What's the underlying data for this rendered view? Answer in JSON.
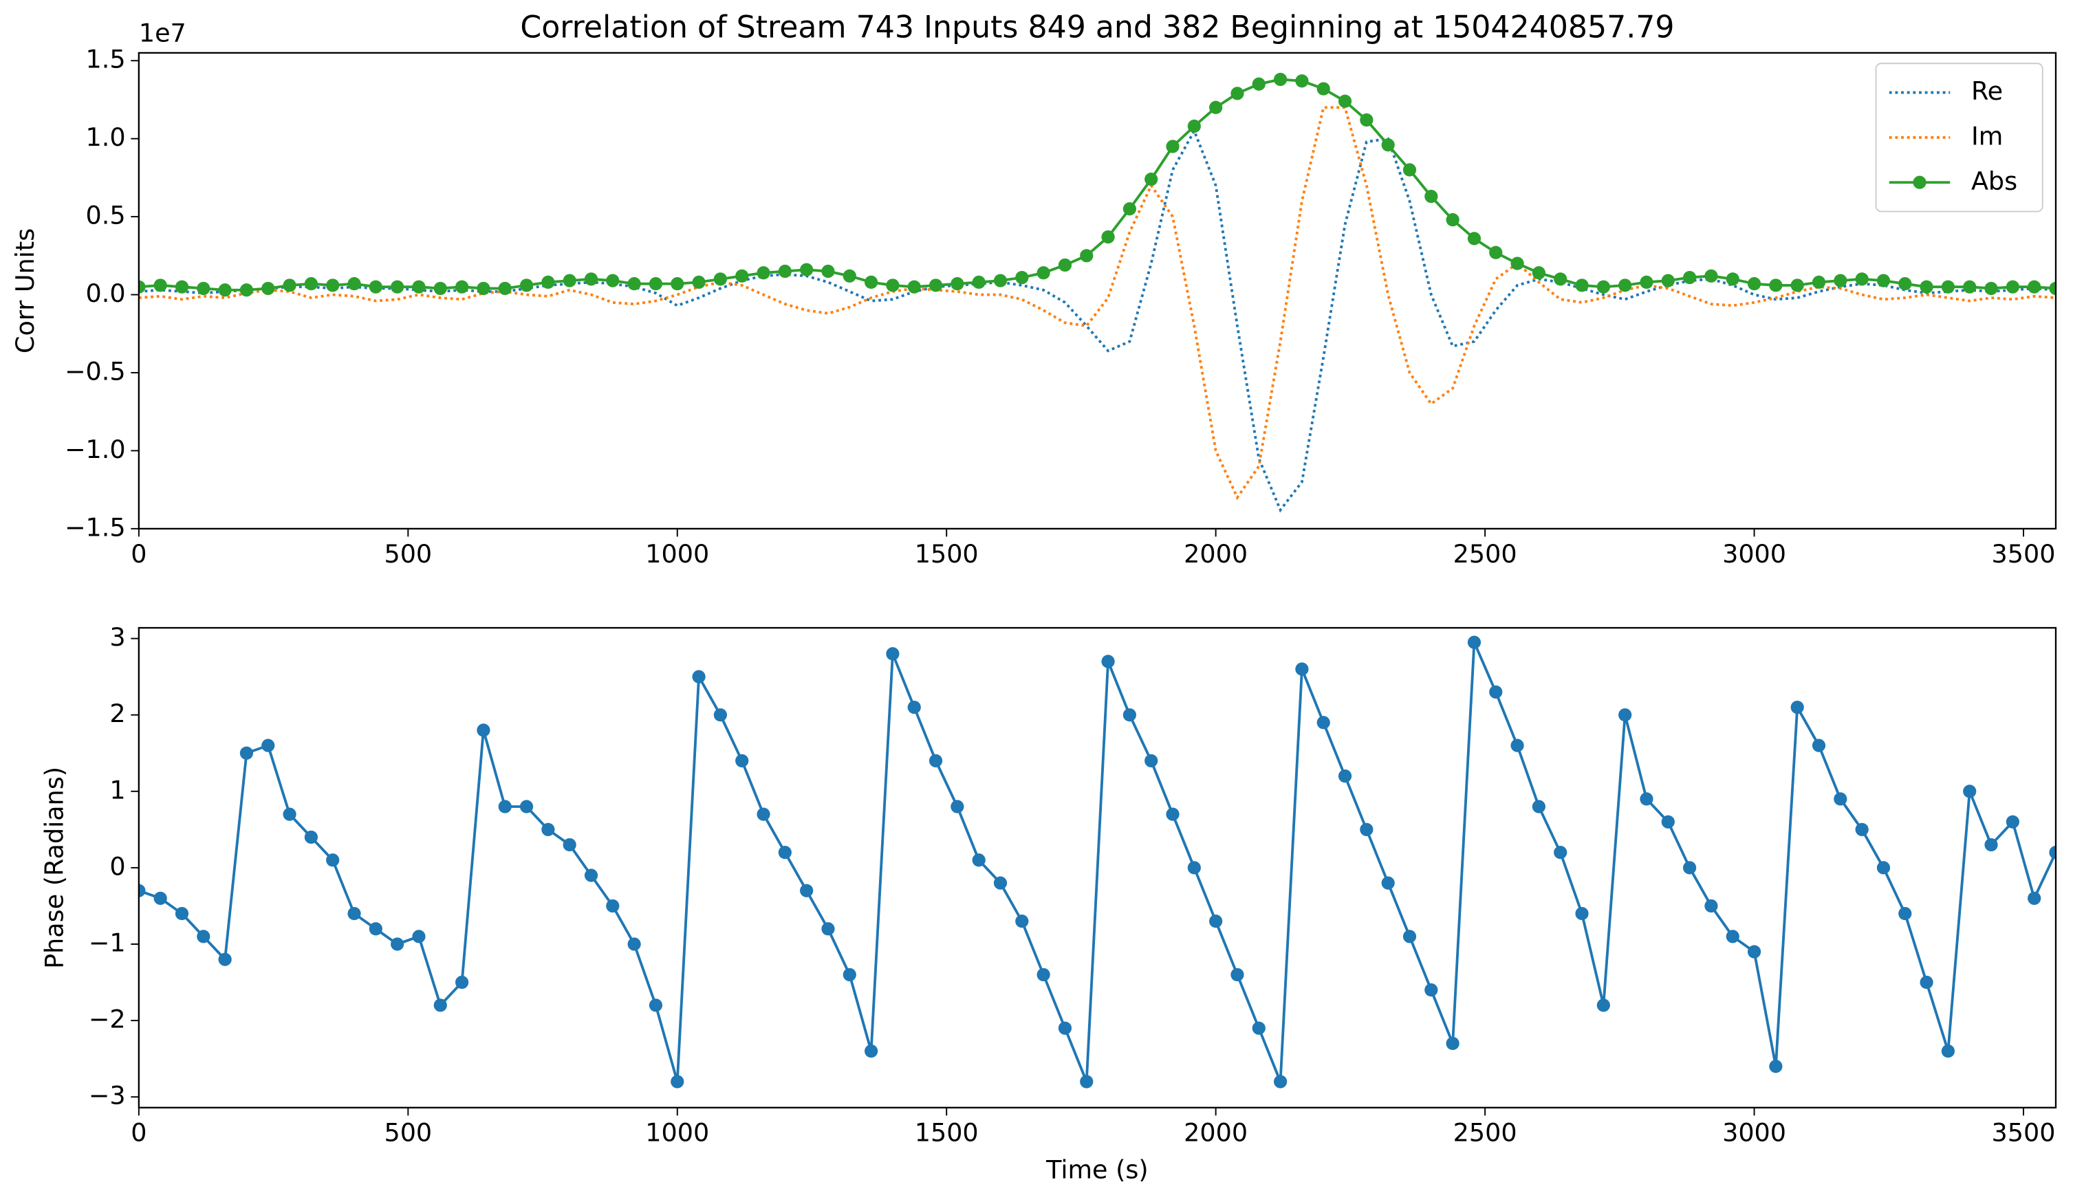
{
  "chart_data": [
    {
      "type": "line",
      "title": "Correlation of Stream 743 Inputs 849 and 382 Beginning at 1504240857.79",
      "ylabel": "Corr Units",
      "offset_text": "1e7",
      "legend": "upper right",
      "x": [
        0,
        40,
        80,
        120,
        160,
        200,
        240,
        280,
        320,
        360,
        400,
        440,
        480,
        520,
        560,
        600,
        640,
        680,
        720,
        760,
        800,
        840,
        880,
        920,
        960,
        1000,
        1040,
        1080,
        1120,
        1160,
        1200,
        1240,
        1280,
        1320,
        1360,
        1400,
        1440,
        1480,
        1520,
        1560,
        1600,
        1640,
        1680,
        1720,
        1760,
        1800,
        1840,
        1880,
        1920,
        1960,
        2000,
        2040,
        2080,
        2120,
        2160,
        2200,
        2240,
        2280,
        2320,
        2360,
        2400,
        2440,
        2480,
        2520,
        2560,
        2600,
        2640,
        2680,
        2720,
        2760,
        2800,
        2840,
        2880,
        2920,
        2960,
        3000,
        3040,
        3080,
        3120,
        3160,
        3200,
        3240,
        3280,
        3320,
        3360,
        3400,
        3440,
        3480,
        3520,
        3560
      ],
      "series": [
        {
          "name": "Re",
          "color": "#1f77b4",
          "linestyle": "dotted",
          "values": [
            0.02,
            0.03,
            0.02,
            0.01,
            0.02,
            0.03,
            0.04,
            0.05,
            0.05,
            0.04,
            0.05,
            0.04,
            0.04,
            0.03,
            0.02,
            0.03,
            0.02,
            0.02,
            0.04,
            0.06,
            0.07,
            0.08,
            0.07,
            0.05,
            0.01,
            -0.07,
            -0.02,
            0.04,
            0.09,
            0.12,
            0.13,
            0.12,
            0.08,
            0.02,
            -0.04,
            -0.03,
            0.02,
            0.05,
            0.06,
            0.07,
            0.08,
            0.06,
            0.03,
            -0.05,
            -0.2,
            -0.36,
            -0.3,
            0.2,
            0.8,
            1.05,
            0.7,
            -0.2,
            -1.05,
            -1.38,
            -1.2,
            -0.4,
            0.45,
            0.98,
            1.0,
            0.6,
            0.0,
            -0.33,
            -0.3,
            -0.1,
            0.06,
            0.1,
            0.08,
            0.04,
            0.0,
            -0.03,
            0.02,
            0.06,
            0.09,
            0.1,
            0.06,
            0.0,
            -0.03,
            -0.02,
            0.02,
            0.05,
            0.07,
            0.06,
            0.03,
            0.01,
            0.02,
            0.03,
            0.02,
            0.03,
            0.04,
            0.03
          ]
        },
        {
          "name": "Im",
          "color": "#ff7f0e",
          "linestyle": "dotted",
          "values": [
            -0.02,
            -0.01,
            -0.03,
            -0.01,
            -0.02,
            0.01,
            0.03,
            0.02,
            -0.02,
            0.0,
            -0.01,
            -0.04,
            -0.03,
            0.0,
            -0.02,
            -0.03,
            0.01,
            0.02,
            0.0,
            -0.01,
            0.03,
            0.0,
            -0.05,
            -0.06,
            -0.04,
            0.0,
            0.05,
            0.08,
            0.06,
            0.0,
            -0.06,
            -0.1,
            -0.12,
            -0.08,
            -0.02,
            0.02,
            0.04,
            0.03,
            0.02,
            0.0,
            0.0,
            -0.03,
            -0.1,
            -0.18,
            -0.2,
            -0.02,
            0.4,
            0.7,
            0.5,
            -0.2,
            -1.0,
            -1.3,
            -1.1,
            -0.3,
            0.6,
            1.2,
            1.2,
            0.7,
            0.0,
            -0.5,
            -0.7,
            -0.6,
            -0.2,
            0.1,
            0.2,
            0.08,
            -0.03,
            -0.05,
            -0.02,
            0.03,
            0.06,
            0.04,
            -0.01,
            -0.06,
            -0.07,
            -0.05,
            -0.02,
            0.02,
            0.05,
            0.04,
            0.0,
            -0.03,
            -0.02,
            0.0,
            -0.02,
            -0.04,
            -0.02,
            -0.03,
            -0.01,
            -0.02
          ]
        },
        {
          "name": "Abs",
          "color": "#2ca02c",
          "linestyle": "solid",
          "marker": "o",
          "values": [
            0.05,
            0.06,
            0.05,
            0.04,
            0.03,
            0.03,
            0.04,
            0.06,
            0.07,
            0.06,
            0.07,
            0.05,
            0.05,
            0.05,
            0.04,
            0.05,
            0.04,
            0.04,
            0.06,
            0.08,
            0.09,
            0.1,
            0.09,
            0.07,
            0.07,
            0.07,
            0.08,
            0.1,
            0.12,
            0.14,
            0.15,
            0.16,
            0.15,
            0.12,
            0.08,
            0.06,
            0.05,
            0.06,
            0.07,
            0.08,
            0.09,
            0.11,
            0.14,
            0.19,
            0.25,
            0.37,
            0.55,
            0.74,
            0.95,
            1.08,
            1.2,
            1.29,
            1.35,
            1.38,
            1.37,
            1.32,
            1.24,
            1.12,
            0.96,
            0.8,
            0.63,
            0.48,
            0.36,
            0.27,
            0.2,
            0.14,
            0.1,
            0.06,
            0.05,
            0.06,
            0.08,
            0.09,
            0.11,
            0.12,
            0.1,
            0.07,
            0.06,
            0.06,
            0.08,
            0.09,
            0.1,
            0.09,
            0.07,
            0.05,
            0.05,
            0.05,
            0.04,
            0.05,
            0.05,
            0.04
          ]
        }
      ],
      "xlim": [
        0,
        3560
      ],
      "xticks": [
        0,
        500,
        1000,
        1500,
        2000,
        2500,
        3000,
        3500
      ],
      "ylim": [
        -1.5,
        1.55
      ],
      "yticks": [
        {
          "value": -1.5,
          "label": "−1.5"
        },
        {
          "value": -1.0,
          "label": "−1.0"
        },
        {
          "value": -0.5,
          "label": "−0.5"
        },
        {
          "value": 0,
          "label": "0.0"
        },
        {
          "value": 0.5,
          "label": "0.5"
        },
        {
          "value": 1.0,
          "label": "1.0"
        },
        {
          "value": 1.5,
          "label": "1.5"
        }
      ]
    },
    {
      "type": "line",
      "xlabel": "Time (s)",
      "ylabel": "Phase (Radians)",
      "x": [
        0,
        40,
        80,
        120,
        160,
        200,
        240,
        280,
        320,
        360,
        400,
        440,
        480,
        520,
        560,
        600,
        640,
        680,
        720,
        760,
        800,
        840,
        880,
        920,
        960,
        1000,
        1040,
        1080,
        1120,
        1160,
        1200,
        1240,
        1280,
        1320,
        1360,
        1400,
        1440,
        1480,
        1520,
        1560,
        1600,
        1640,
        1680,
        1720,
        1760,
        1800,
        1840,
        1880,
        1920,
        1960,
        2000,
        2040,
        2080,
        2120,
        2160,
        2200,
        2240,
        2280,
        2320,
        2360,
        2400,
        2440,
        2480,
        2520,
        2560,
        2600,
        2640,
        2680,
        2720,
        2760,
        2800,
        2840,
        2880,
        2920,
        2960,
        3000,
        3040,
        3080,
        3120,
        3160,
        3200,
        3240,
        3280,
        3320,
        3360,
        3400,
        3440,
        3480,
        3520,
        3560
      ],
      "series": [
        {
          "name": "Phase",
          "color": "#1f77b4",
          "linestyle": "solid",
          "marker": "o",
          "values": [
            -0.3,
            -0.4,
            -0.6,
            -0.9,
            -1.2,
            1.5,
            1.6,
            0.7,
            0.4,
            0.1,
            -0.6,
            -0.8,
            -1.0,
            -0.9,
            -1.8,
            -1.5,
            1.8,
            0.8,
            0.8,
            0.5,
            0.3,
            -0.1,
            -0.5,
            -1.0,
            -1.8,
            -2.8,
            2.5,
            2.0,
            1.4,
            0.7,
            0.2,
            -0.3,
            -0.8,
            -1.4,
            -2.4,
            2.8,
            2.1,
            1.4,
            0.8,
            0.1,
            -0.2,
            -0.7,
            -1.4,
            -2.1,
            -2.8,
            2.7,
            2.0,
            1.4,
            0.7,
            0.0,
            -0.7,
            -1.4,
            -2.1,
            -2.8,
            2.6,
            1.9,
            1.2,
            0.5,
            -0.2,
            -0.9,
            -1.6,
            -2.3,
            2.95,
            2.3,
            1.6,
            0.8,
            0.2,
            -0.6,
            -1.8,
            2.0,
            0.9,
            0.6,
            0.0,
            -0.5,
            -0.9,
            -1.1,
            -2.6,
            2.1,
            1.6,
            0.9,
            0.5,
            0.0,
            -0.6,
            -1.5,
            -2.4,
            1.0,
            0.3,
            0.6,
            -0.4,
            0.2
          ]
        }
      ],
      "xlim": [
        0,
        3560
      ],
      "xticks": [
        0,
        500,
        1000,
        1500,
        2000,
        2500,
        3000,
        3500
      ],
      "ylim": [
        -3.14,
        3.14
      ],
      "yticks": [
        {
          "value": -3,
          "label": "−3"
        },
        {
          "value": -2,
          "label": "−2"
        },
        {
          "value": -1,
          "label": "−1"
        },
        0,
        1,
        2,
        3
      ]
    }
  ]
}
